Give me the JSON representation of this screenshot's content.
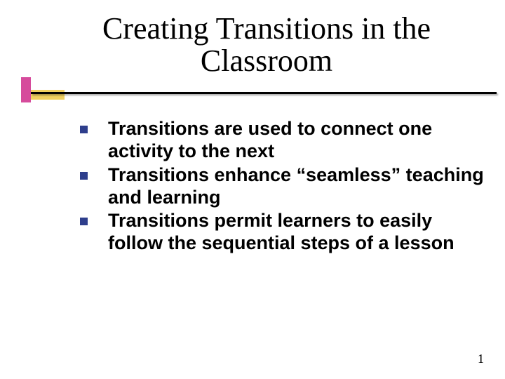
{
  "slide": {
    "title": "Creating Transitions in the Classroom",
    "title_fontsize": 44,
    "title_color": "#000000",
    "bullets": [
      "Transitions are used to connect one activity to the next",
      "Transitions enhance “seamless” teaching and learning",
      "Transitions permit learners to easily follow the sequential steps of a lesson"
    ],
    "bullet_fontsize": 27,
    "bullet_color": "#000000",
    "bullet_marker_color": "#2e3e8c",
    "decoration": {
      "vertical_box_color": "#d64b9c",
      "horizontal_box_color": "#f0d060"
    },
    "page_number": "1",
    "page_number_fontsize": 18,
    "background_color": "#ffffff"
  }
}
